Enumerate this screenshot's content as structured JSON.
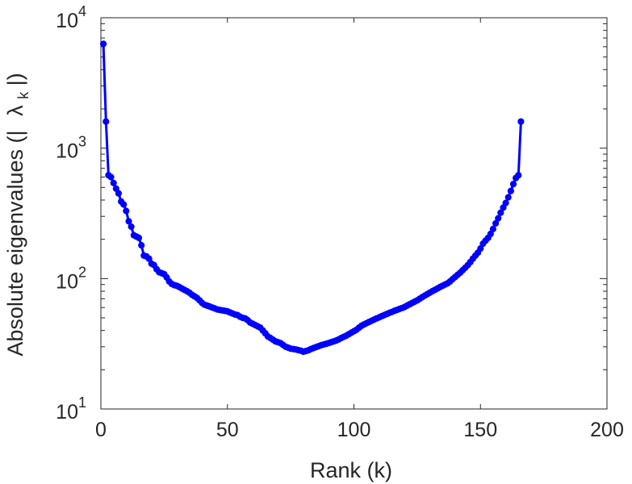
{
  "chart_data": {
    "type": "line",
    "title": "",
    "xlabel": "Rank (k)",
    "ylabel": "Absolute eigenvalues (|λ_k|)",
    "ylabel_parts": {
      "prefix": "Absolute eigenvalues (|",
      "lambda": "λ",
      "subscript": "k",
      "suffix": "|)"
    },
    "xlim": [
      0,
      200
    ],
    "ylim": [
      10,
      10000
    ],
    "yscale": "log",
    "grid": false,
    "box": true,
    "legend": "none",
    "xticks": [
      0,
      50,
      100,
      150,
      200
    ],
    "xtick_labels": [
      "0",
      "50",
      "100",
      "150",
      "200"
    ],
    "yticks": [
      10,
      100,
      1000,
      10000
    ],
    "ytick_labels": [
      {
        "base": "10",
        "exp": "1"
      },
      {
        "base": "10",
        "exp": "2"
      },
      {
        "base": "10",
        "exp": "3"
      },
      {
        "base": "10",
        "exp": "4"
      }
    ],
    "colors": {
      "series": "#0000ff",
      "axis": "#262626"
    },
    "series": [
      {
        "marker": "circle",
        "x": [
          1,
          2,
          3,
          4,
          5,
          6,
          7,
          8,
          9,
          10,
          11,
          12,
          13,
          14,
          15,
          16,
          17,
          18,
          19,
          20,
          21,
          22,
          23,
          24,
          25,
          26,
          27,
          28,
          29,
          30,
          31,
          32,
          33,
          34,
          35,
          36,
          37,
          38,
          39,
          40,
          41,
          42,
          43,
          44,
          45,
          46,
          47,
          48,
          49,
          50,
          51,
          52,
          53,
          54,
          55,
          56,
          57,
          58,
          59,
          60,
          61,
          62,
          63,
          64,
          65,
          66,
          67,
          68,
          69,
          70,
          71,
          72,
          73,
          74,
          75,
          76,
          77,
          78,
          79,
          80,
          81,
          82,
          83,
          84,
          85,
          86,
          87,
          88,
          89,
          90,
          91,
          92,
          93,
          94,
          95,
          96,
          97,
          98,
          99,
          100,
          101,
          102,
          103,
          104,
          105,
          106,
          107,
          108,
          109,
          110,
          111,
          112,
          113,
          114,
          115,
          116,
          117,
          118,
          119,
          120,
          121,
          122,
          123,
          124,
          125,
          126,
          127,
          128,
          129,
          130,
          131,
          132,
          133,
          134,
          135,
          136,
          137,
          138,
          139,
          140,
          141,
          142,
          143,
          144,
          145,
          146,
          147,
          148,
          149,
          150,
          151,
          152,
          153,
          154,
          155,
          156,
          157,
          158,
          159,
          160,
          161,
          162,
          163,
          164,
          165,
          166
        ],
        "y": [
          6300,
          1600,
          620,
          600,
          540,
          490,
          450,
          390,
          370,
          330,
          275,
          250,
          215,
          210,
          205,
          180,
          150,
          148,
          142,
          130,
          127,
          118,
          112,
          110,
          108,
          102,
          95,
          91,
          89,
          88,
          86,
          84,
          82,
          80,
          78,
          75,
          73,
          71,
          68,
          65,
          63,
          62,
          61,
          60,
          59,
          58,
          57.5,
          57,
          56.5,
          56,
          55,
          54,
          53,
          52.5,
          51,
          50,
          49.5,
          48,
          46,
          45,
          44,
          43,
          42,
          40,
          38,
          36,
          35,
          34,
          33,
          32.5,
          32,
          31,
          30,
          29.5,
          29,
          28.8,
          28.6,
          28.3,
          28,
          27.5,
          27.8,
          28.2,
          28.8,
          29.3,
          29.8,
          30.3,
          30.8,
          31.2,
          31.6,
          32,
          32.5,
          33,
          33.5,
          34.2,
          35,
          35.8,
          36.5,
          37.5,
          38.5,
          39.5,
          40.5,
          42,
          43.5,
          44.5,
          45.5,
          46.5,
          47.5,
          48.5,
          49.5,
          50.5,
          51.5,
          52.5,
          53.5,
          54.5,
          55.5,
          56.5,
          57.5,
          58.5,
          59.5,
          60.5,
          62,
          63.5,
          65,
          66.5,
          68,
          70,
          72,
          74,
          76,
          78,
          80,
          82,
          84,
          86,
          88,
          90,
          92,
          95,
          99,
          103,
          107,
          111,
          116,
          121,
          127,
          134,
          142,
          150,
          158,
          170,
          185,
          195,
          205,
          220,
          240,
          265,
          290,
          320,
          350,
          380,
          420,
          470,
          530,
          590,
          620,
          1600
        ]
      }
    ]
  }
}
